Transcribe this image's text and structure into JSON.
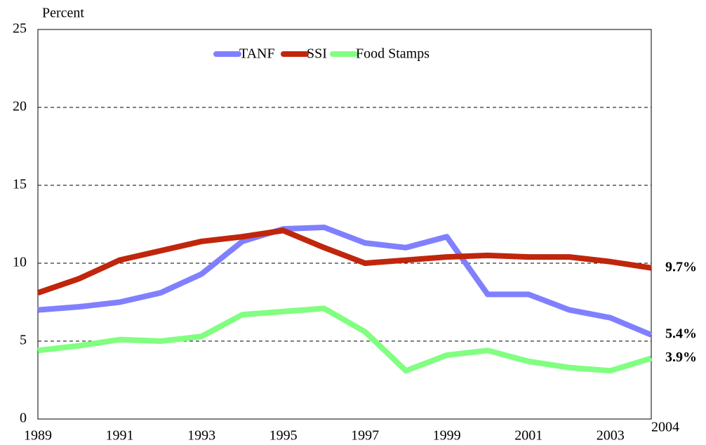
{
  "chart_data": {
    "type": "line",
    "y_label": "Percent",
    "x": [
      1989,
      1990,
      1991,
      1992,
      1993,
      1994,
      1995,
      1996,
      1997,
      1998,
      1999,
      2000,
      2001,
      2002,
      2003,
      2004
    ],
    "series": [
      {
        "name": "TANF",
        "color": "#8080ff",
        "end_label": "5.4%",
        "end_label_color": "#000080",
        "values": [
          7.0,
          7.2,
          7.5,
          8.1,
          9.3,
          11.4,
          12.2,
          12.3,
          11.3,
          11.0,
          11.7,
          8.0,
          8.0,
          7.0,
          6.5,
          5.4
        ]
      },
      {
        "name": "SSI",
        "color": "#c0260c",
        "end_label": "9.7%",
        "end_label_color": "#c0260c",
        "values": [
          8.1,
          9.0,
          10.2,
          10.8,
          11.4,
          11.7,
          12.1,
          11.0,
          10.0,
          10.2,
          10.4,
          10.5,
          10.4,
          10.4,
          10.1,
          9.7
        ]
      },
      {
        "name": "Food Stamps",
        "color": "#80ff80",
        "end_label": "3.9%",
        "end_label_color": "#008080",
        "values": [
          4.4,
          4.7,
          5.1,
          5.0,
          5.3,
          6.7,
          6.9,
          7.1,
          5.6,
          3.1,
          4.1,
          4.4,
          3.7,
          3.3,
          3.1,
          3.9
        ]
      }
    ],
    "xlim": [
      1989,
      2004
    ],
    "xticks": [
      1989,
      1991,
      1993,
      1995,
      1997,
      1999,
      2001,
      2003,
      2004
    ],
    "end_tick_color": "#000080",
    "ylim": [
      0,
      25
    ],
    "yticks": [
      0,
      5,
      10,
      15,
      20,
      25
    ],
    "grid": true,
    "legend": "top"
  }
}
